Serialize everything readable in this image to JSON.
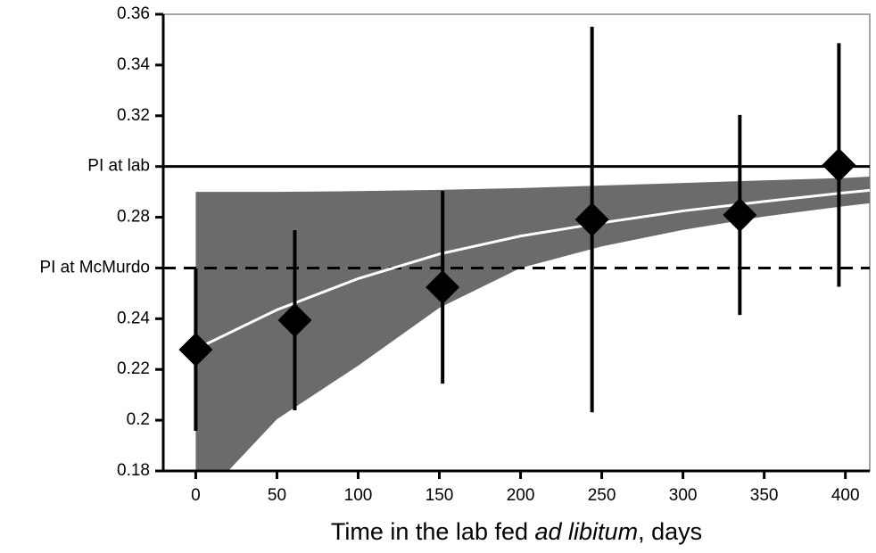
{
  "chart_data": {
    "type": "scatter",
    "xlabel": [
      "Time in the lab fed ",
      "ad libitum",
      ", days"
    ],
    "xlim": [
      -20,
      415
    ],
    "ylim": [
      0.18,
      0.36
    ],
    "xticks": [
      0,
      50,
      100,
      150,
      200,
      250,
      300,
      350,
      400
    ],
    "yticks": [
      0.18,
      {
        "value": 0.2,
        "label": "0.2"
      },
      0.22,
      0.24,
      {
        "value": 0.26,
        "label": "PI at McMurdo"
      },
      0.28,
      {
        "value": 0.3,
        "label": "PI at lab"
      },
      0.32,
      0.34,
      0.36
    ],
    "reference_lines": [
      {
        "value": 0.3,
        "style": "solid"
      },
      {
        "value": 0.26,
        "style": "dashed"
      }
    ],
    "series": [
      {
        "color": "#000000",
        "x": [
          0,
          61,
          152,
          244,
          335,
          396
        ],
        "values": [
          0.2278,
          0.2394,
          0.2524,
          0.2791,
          0.2809,
          0.3006
        ],
        "errors": [
          0.032,
          0.0355,
          0.038,
          0.076,
          0.0394,
          0.048
        ]
      }
    ],
    "fit": {
      "color": "#ffffff",
      "x": [
        0,
        50,
        100,
        150,
        200,
        250,
        300,
        350,
        400,
        415
      ],
      "y": [
        0.228,
        0.2435,
        0.2558,
        0.2655,
        0.2726,
        0.2778,
        0.2825,
        0.2862,
        0.2897,
        0.2906
      ]
    },
    "band": {
      "color": "#6b6b6b",
      "x": [
        0,
        20,
        50,
        100,
        150,
        200,
        250,
        300,
        350,
        400,
        415
      ],
      "lower": [
        0.16,
        0.18,
        0.2004,
        0.2215,
        0.2443,
        0.26,
        0.2685,
        0.275,
        0.2803,
        0.2844,
        0.2855
      ],
      "upper": [
        0.29,
        0.29,
        0.29,
        0.2903,
        0.2908,
        0.2915,
        0.2925,
        0.2935,
        0.2945,
        0.2955,
        0.296
      ]
    }
  }
}
